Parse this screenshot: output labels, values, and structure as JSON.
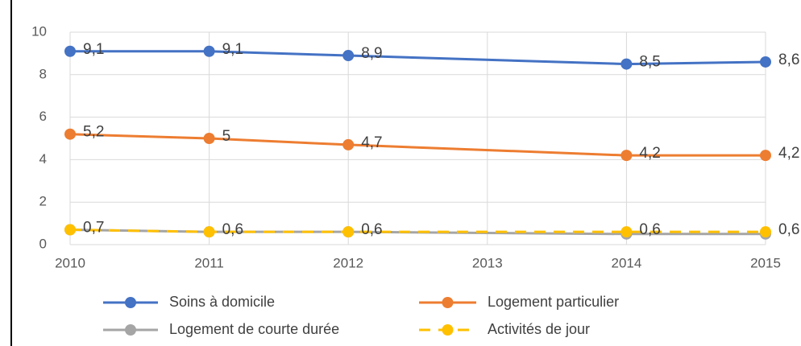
{
  "chart_data": {
    "type": "line",
    "x": [
      2010,
      2011,
      2012,
      2014,
      2015
    ],
    "xlim": [
      2010,
      2015
    ],
    "xticks": [
      2010,
      2011,
      2012,
      2013,
      2014,
      2015
    ],
    "ylim": [
      0,
      10
    ],
    "yticks": [
      0,
      2,
      4,
      6,
      8,
      10
    ],
    "grid": true,
    "legend": "bottom",
    "series": [
      {
        "name": "Soins à domicile",
        "color": "#4472c4",
        "values": [
          9.1,
          9.1,
          8.9,
          8.5,
          8.6
        ],
        "value_labels": [
          "9,1",
          "9,1",
          "8,9",
          "8,5",
          "8,6"
        ]
      },
      {
        "name": "Logement particulier",
        "color": "#ed7d31",
        "values": [
          5.2,
          5,
          4.7,
          4.2,
          4.2
        ],
        "value_labels": [
          "5,2",
          "5",
          "4,7",
          "4,2",
          "4,2"
        ]
      },
      {
        "name": "Logement de courte durée",
        "color": "#a5a5a5",
        "values": [
          0.7,
          0.6,
          0.6,
          0.5,
          0.5
        ]
      },
      {
        "name": "Activités de jour",
        "color": "#ffc000",
        "dashed": true,
        "values": [
          0.7,
          0.6,
          0.6,
          0.6,
          0.6
        ],
        "value_labels": [
          "0,7",
          "0,6",
          "0,6",
          "0,6",
          "0,6"
        ]
      }
    ]
  }
}
